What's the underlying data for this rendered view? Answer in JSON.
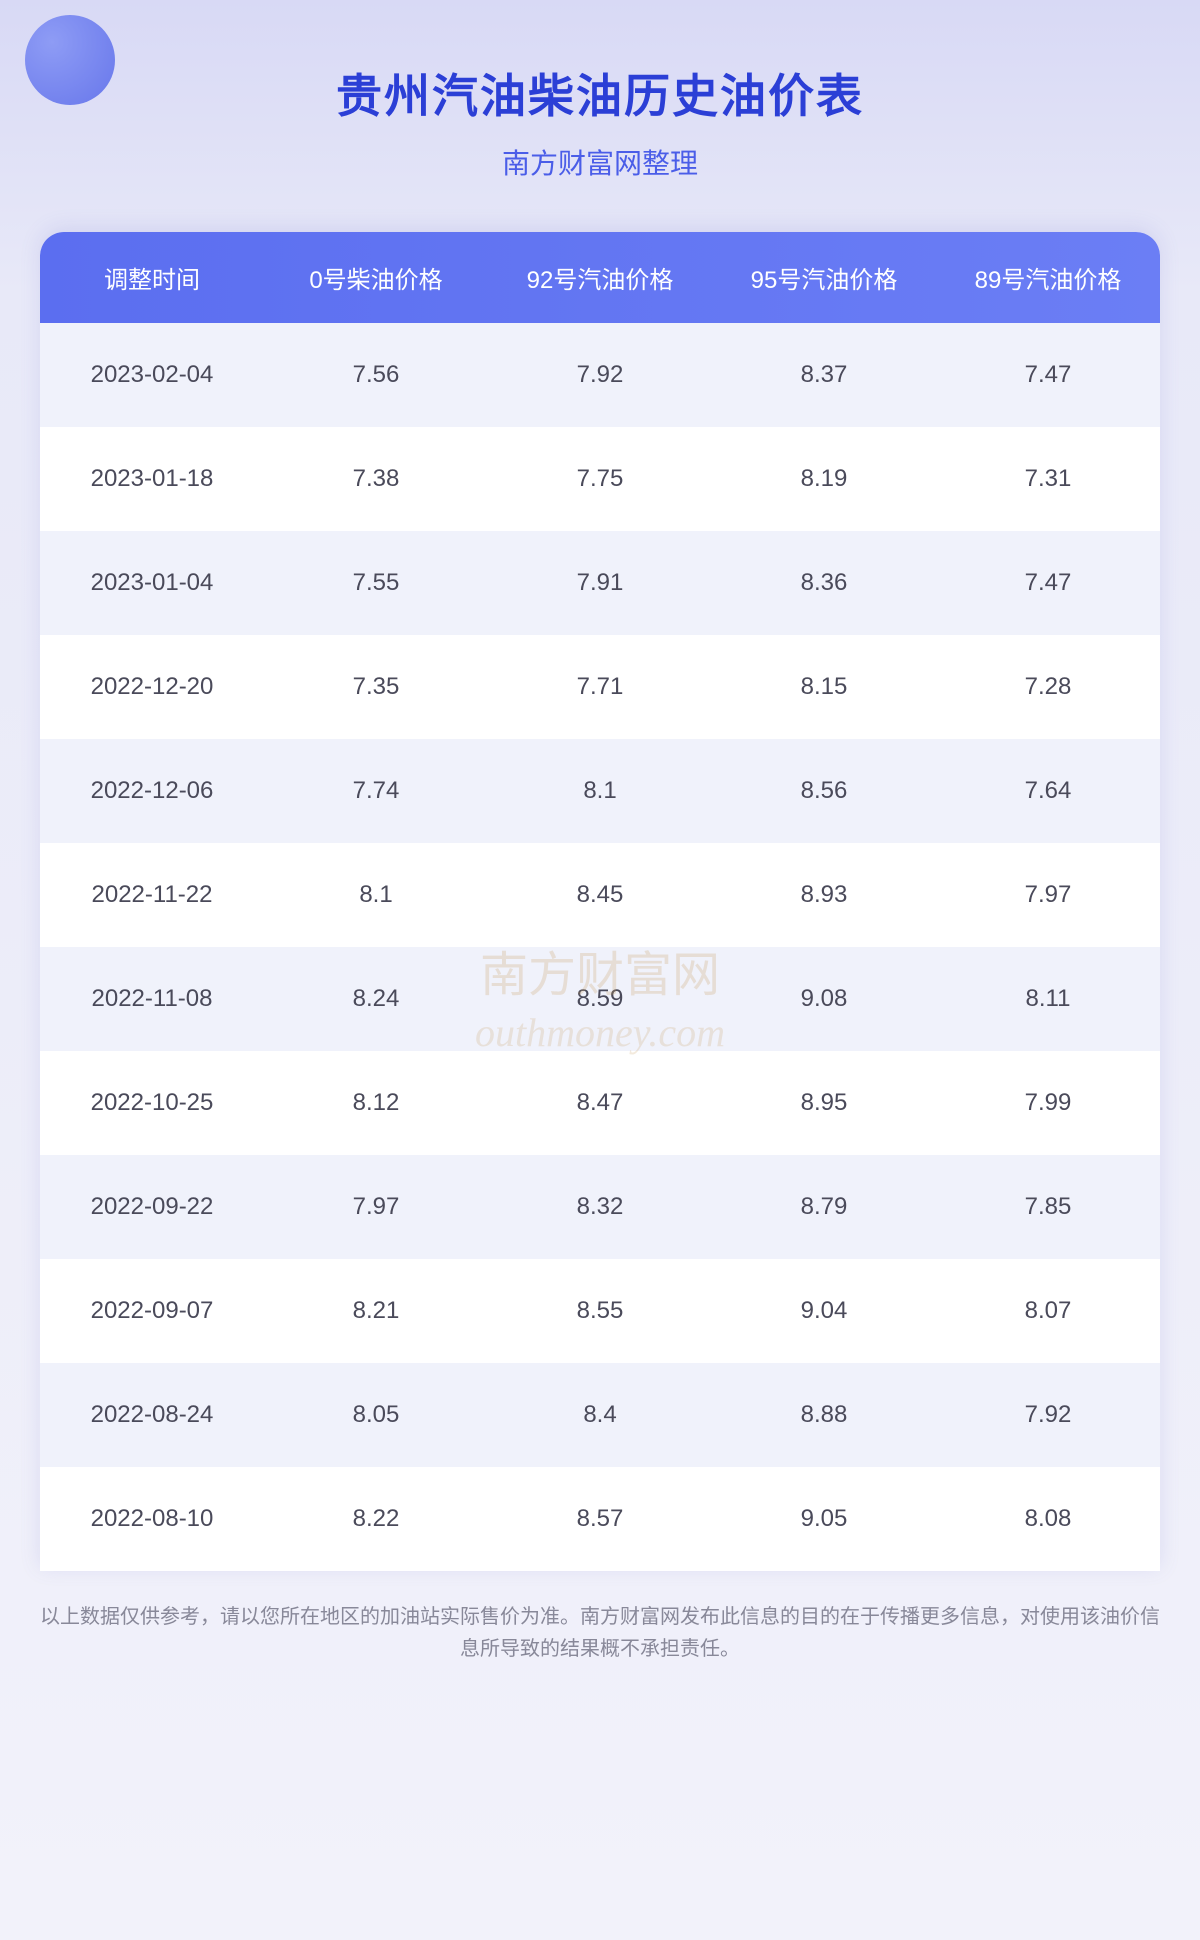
{
  "header": {
    "title": "贵州汽油柴油历史油价表",
    "subtitle": "南方财富网整理"
  },
  "table": {
    "columns": [
      "调整时间",
      "0号柴油价格",
      "92号汽油价格",
      "95号汽油价格",
      "89号汽油价格"
    ],
    "rows": [
      [
        "2023-02-04",
        "7.56",
        "7.92",
        "8.37",
        "7.47"
      ],
      [
        "2023-01-18",
        "7.38",
        "7.75",
        "8.19",
        "7.31"
      ],
      [
        "2023-01-04",
        "7.55",
        "7.91",
        "8.36",
        "7.47"
      ],
      [
        "2022-12-20",
        "7.35",
        "7.71",
        "8.15",
        "7.28"
      ],
      [
        "2022-12-06",
        "7.74",
        "8.1",
        "8.56",
        "7.64"
      ],
      [
        "2022-11-22",
        "8.1",
        "8.45",
        "8.93",
        "7.97"
      ],
      [
        "2022-11-08",
        "8.24",
        "8.59",
        "9.08",
        "8.11"
      ],
      [
        "2022-10-25",
        "8.12",
        "8.47",
        "8.95",
        "7.99"
      ],
      [
        "2022-09-22",
        "7.97",
        "8.32",
        "8.79",
        "7.85"
      ],
      [
        "2022-09-07",
        "8.21",
        "8.55",
        "9.04",
        "8.07"
      ],
      [
        "2022-08-24",
        "8.05",
        "8.4",
        "8.88",
        "7.92"
      ],
      [
        "2022-08-10",
        "8.22",
        "8.57",
        "9.05",
        "8.08"
      ]
    ]
  },
  "watermark": {
    "line1": "南方财富网",
    "line2": "outhmoney.com"
  },
  "disclaimer": "以上数据仅供参考，请以您所在地区的加油站实际售价为准。南方财富网发布此信息的目的在于传播更多信息，对使用该油价信息所导致的结果概不承担责任。",
  "styling": {
    "title_color": "#2b3fd6",
    "subtitle_color": "#4a5de8",
    "header_gradient_start": "#5b6ef0",
    "header_gradient_end": "#6b7ef5",
    "row_odd_bg": "#f0f2fb",
    "row_even_bg": "#ffffff",
    "text_color": "#4a4a5a",
    "disclaimer_color": "#888899",
    "watermark_color": "rgba(200, 160, 100, 0.25)",
    "bg_gradient_start": "#d8d9f5",
    "bg_gradient_end": "#f2f2fa",
    "title_fontsize": 46,
    "subtitle_fontsize": 28,
    "header_fontsize": 24,
    "cell_fontsize": 24,
    "disclaimer_fontsize": 20
  }
}
